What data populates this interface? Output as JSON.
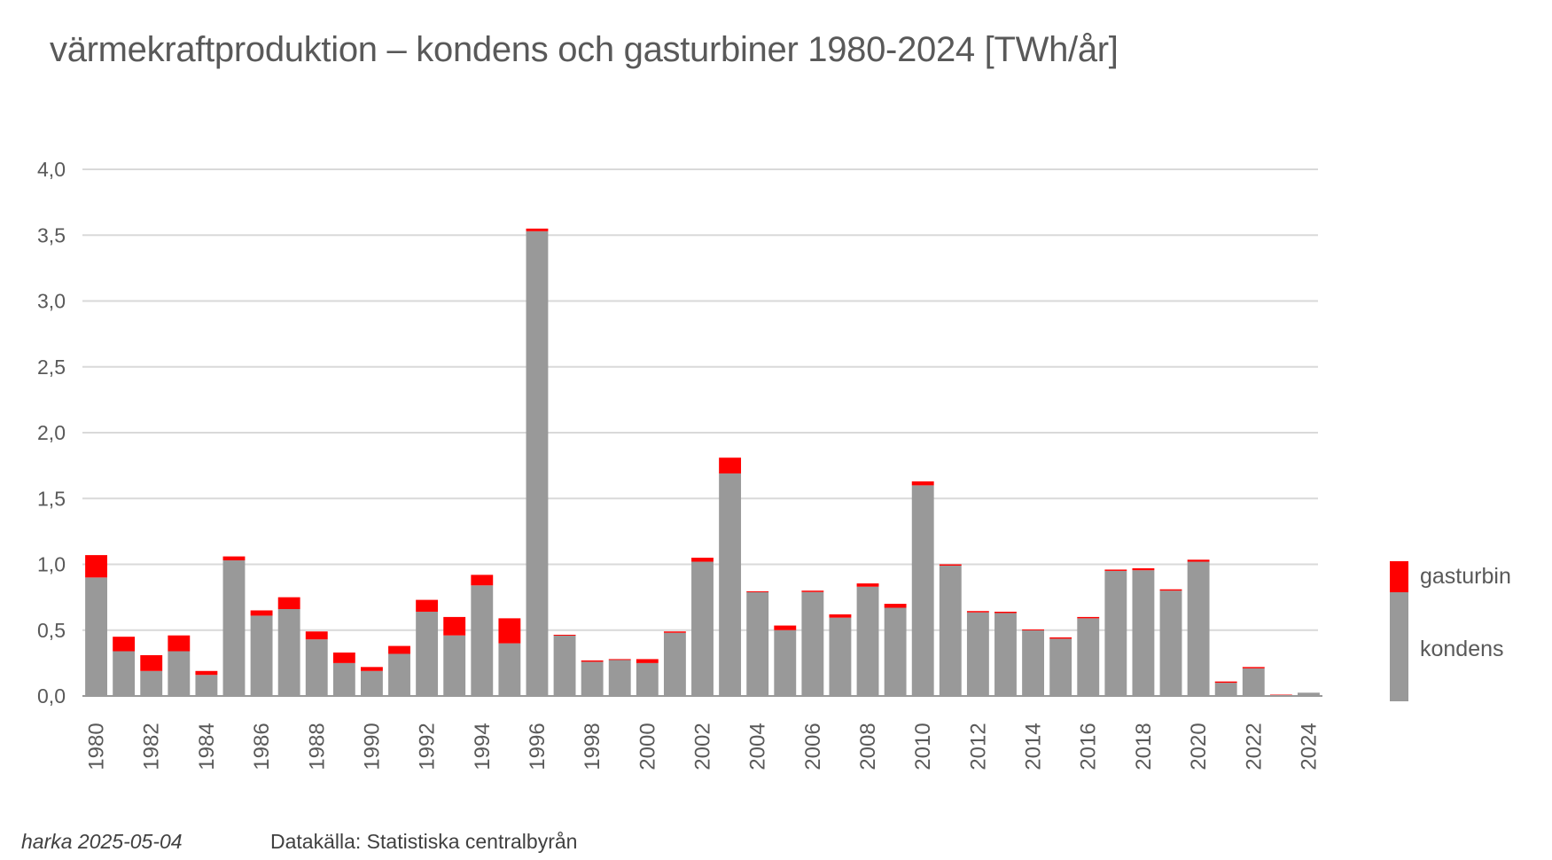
{
  "chart_data": {
    "type": "bar",
    "stacked": true,
    "title": "värmekraftproduktion – kondens och gasturbiner 1980-2024 [TWh/år]",
    "xlabel": "",
    "ylabel": "",
    "ylim": [
      0,
      4.0
    ],
    "yticks": [
      "0,0",
      "0,5",
      "1,0",
      "1,5",
      "2,0",
      "2,5",
      "3,0",
      "3,5",
      "4,0"
    ],
    "ytick_values": [
      0,
      0.5,
      1.0,
      1.5,
      2.0,
      2.5,
      3.0,
      3.5,
      4.0
    ],
    "grid": true,
    "legend_position": "right",
    "categories": [
      "1980",
      "1981",
      "1982",
      "1983",
      "1984",
      "1985",
      "1986",
      "1987",
      "1988",
      "1989",
      "1990",
      "1991",
      "1992",
      "1993",
      "1994",
      "1995",
      "1996",
      "1997",
      "1998",
      "1999",
      "2000",
      "2001",
      "2002",
      "2003",
      "2004",
      "2005",
      "2006",
      "2007",
      "2008",
      "2009",
      "2010",
      "2011",
      "2012",
      "2013",
      "2014",
      "2015",
      "2016",
      "2017",
      "2018",
      "2019",
      "2020",
      "2021",
      "2022",
      "2023",
      "2024"
    ],
    "xtick_labels_shown": [
      "1980",
      "1982",
      "1984",
      "1986",
      "1988",
      "1990",
      "1992",
      "1994",
      "1996",
      "1998",
      "2000",
      "2002",
      "2004",
      "2006",
      "2008",
      "2010",
      "2012",
      "2014",
      "2016",
      "2018",
      "2020",
      "2022",
      "2024"
    ],
    "series": [
      {
        "name": "kondens",
        "color": "#999999",
        "values": [
          0.9,
          0.34,
          0.19,
          0.34,
          0.16,
          1.03,
          0.61,
          0.66,
          0.43,
          0.25,
          0.19,
          0.32,
          0.64,
          0.46,
          0.84,
          0.4,
          3.53,
          0.46,
          0.26,
          0.275,
          0.25,
          0.48,
          1.02,
          1.69,
          0.79,
          0.5,
          0.79,
          0.595,
          0.83,
          0.67,
          1.6,
          0.99,
          0.635,
          0.63,
          0.5,
          0.435,
          0.59,
          0.95,
          0.955,
          0.8,
          1.02,
          0.1,
          0.21,
          0.005,
          0.025
        ]
      },
      {
        "name": "gasturbin",
        "color": "#ff0000",
        "values": [
          0.17,
          0.11,
          0.12,
          0.12,
          0.03,
          0.03,
          0.04,
          0.09,
          0.06,
          0.08,
          0.03,
          0.06,
          0.09,
          0.14,
          0.08,
          0.19,
          0.02,
          0.005,
          0.01,
          0.005,
          0.03,
          0.01,
          0.03,
          0.12,
          0.005,
          0.035,
          0.01,
          0.025,
          0.025,
          0.03,
          0.03,
          0.01,
          0.01,
          0.01,
          0.005,
          0.01,
          0.01,
          0.01,
          0.015,
          0.01,
          0.015,
          0.01,
          0.01,
          0.005,
          0.0
        ]
      }
    ]
  },
  "footer": {
    "author": "harka 2025-05-04",
    "source": "Datakälla: Statistiska centralbyrån"
  },
  "colors": {
    "text": "#595959",
    "grid": "#d9d9d9",
    "axis": "#999999"
  }
}
